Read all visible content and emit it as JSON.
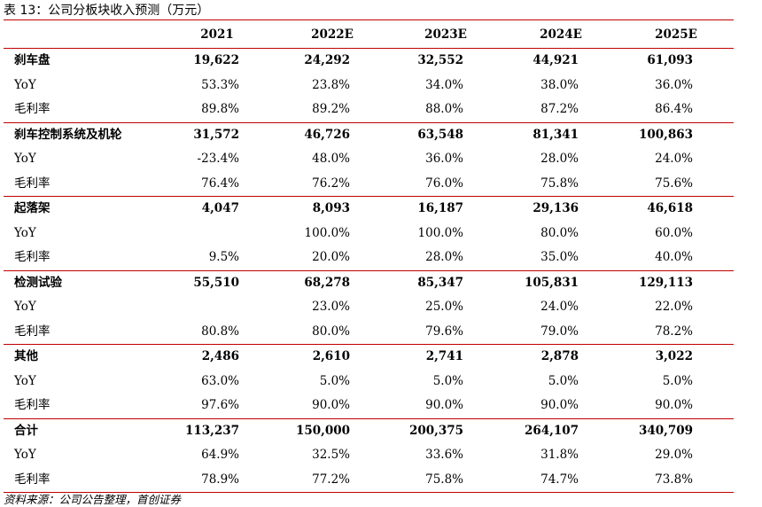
{
  "title": "表 13：公司分板块收入预测（万元）",
  "columns": [
    "2021",
    "2022E",
    "2023E",
    "2024E",
    "2025E"
  ],
  "groups": [
    {
      "name": "刹车盘",
      "values": [
        "19,622",
        "24,292",
        "32,552",
        "44,921",
        "61,093"
      ],
      "yoy": [
        "53.3%",
        "23.8%",
        "34.0%",
        "38.0%",
        "36.0%"
      ],
      "margin": [
        "89.8%",
        "89.2%",
        "88.0%",
        "87.2%",
        "86.4%"
      ]
    },
    {
      "name": "刹车控制系统及机轮",
      "values": [
        "31,572",
        "46,726",
        "63,548",
        "81,341",
        "100,863"
      ],
      "yoy": [
        "-23.4%",
        "48.0%",
        "36.0%",
        "28.0%",
        "24.0%"
      ],
      "margin": [
        "76.4%",
        "76.2%",
        "76.0%",
        "75.8%",
        "75.6%"
      ]
    },
    {
      "name": "起落架",
      "values": [
        "4,047",
        "8,093",
        "16,187",
        "29,136",
        "46,618"
      ],
      "yoy": [
        "",
        "100.0%",
        "100.0%",
        "80.0%",
        "60.0%"
      ],
      "margin": [
        "9.5%",
        "20.0%",
        "28.0%",
        "35.0%",
        "40.0%"
      ]
    },
    {
      "name": "检测试验",
      "values": [
        "55,510",
        "68,278",
        "85,347",
        "105,831",
        "129,113"
      ],
      "yoy": [
        "",
        "23.0%",
        "25.0%",
        "24.0%",
        "22.0%"
      ],
      "margin": [
        "80.8%",
        "80.0%",
        "79.6%",
        "79.0%",
        "78.2%"
      ]
    },
    {
      "name": "其他",
      "values": [
        "2,486",
        "2,610",
        "2,741",
        "2,878",
        "3,022"
      ],
      "yoy": [
        "63.0%",
        "5.0%",
        "5.0%",
        "5.0%",
        "5.0%"
      ],
      "margin": [
        "97.6%",
        "90.0%",
        "90.0%",
        "90.0%",
        "90.0%"
      ]
    },
    {
      "name": "合计",
      "values": [
        "113,237",
        "150,000",
        "200,375",
        "264,107",
        "340,709"
      ],
      "yoy": [
        "64.9%",
        "32.5%",
        "33.6%",
        "31.8%",
        "29.0%"
      ],
      "margin": [
        "78.9%",
        "77.2%",
        "75.8%",
        "74.7%",
        "73.8%"
      ]
    }
  ],
  "row_labels": {
    "yoy": "YoY",
    "margin": "毛利率"
  },
  "source": "资料来源：公司公告整理，首创证券"
}
